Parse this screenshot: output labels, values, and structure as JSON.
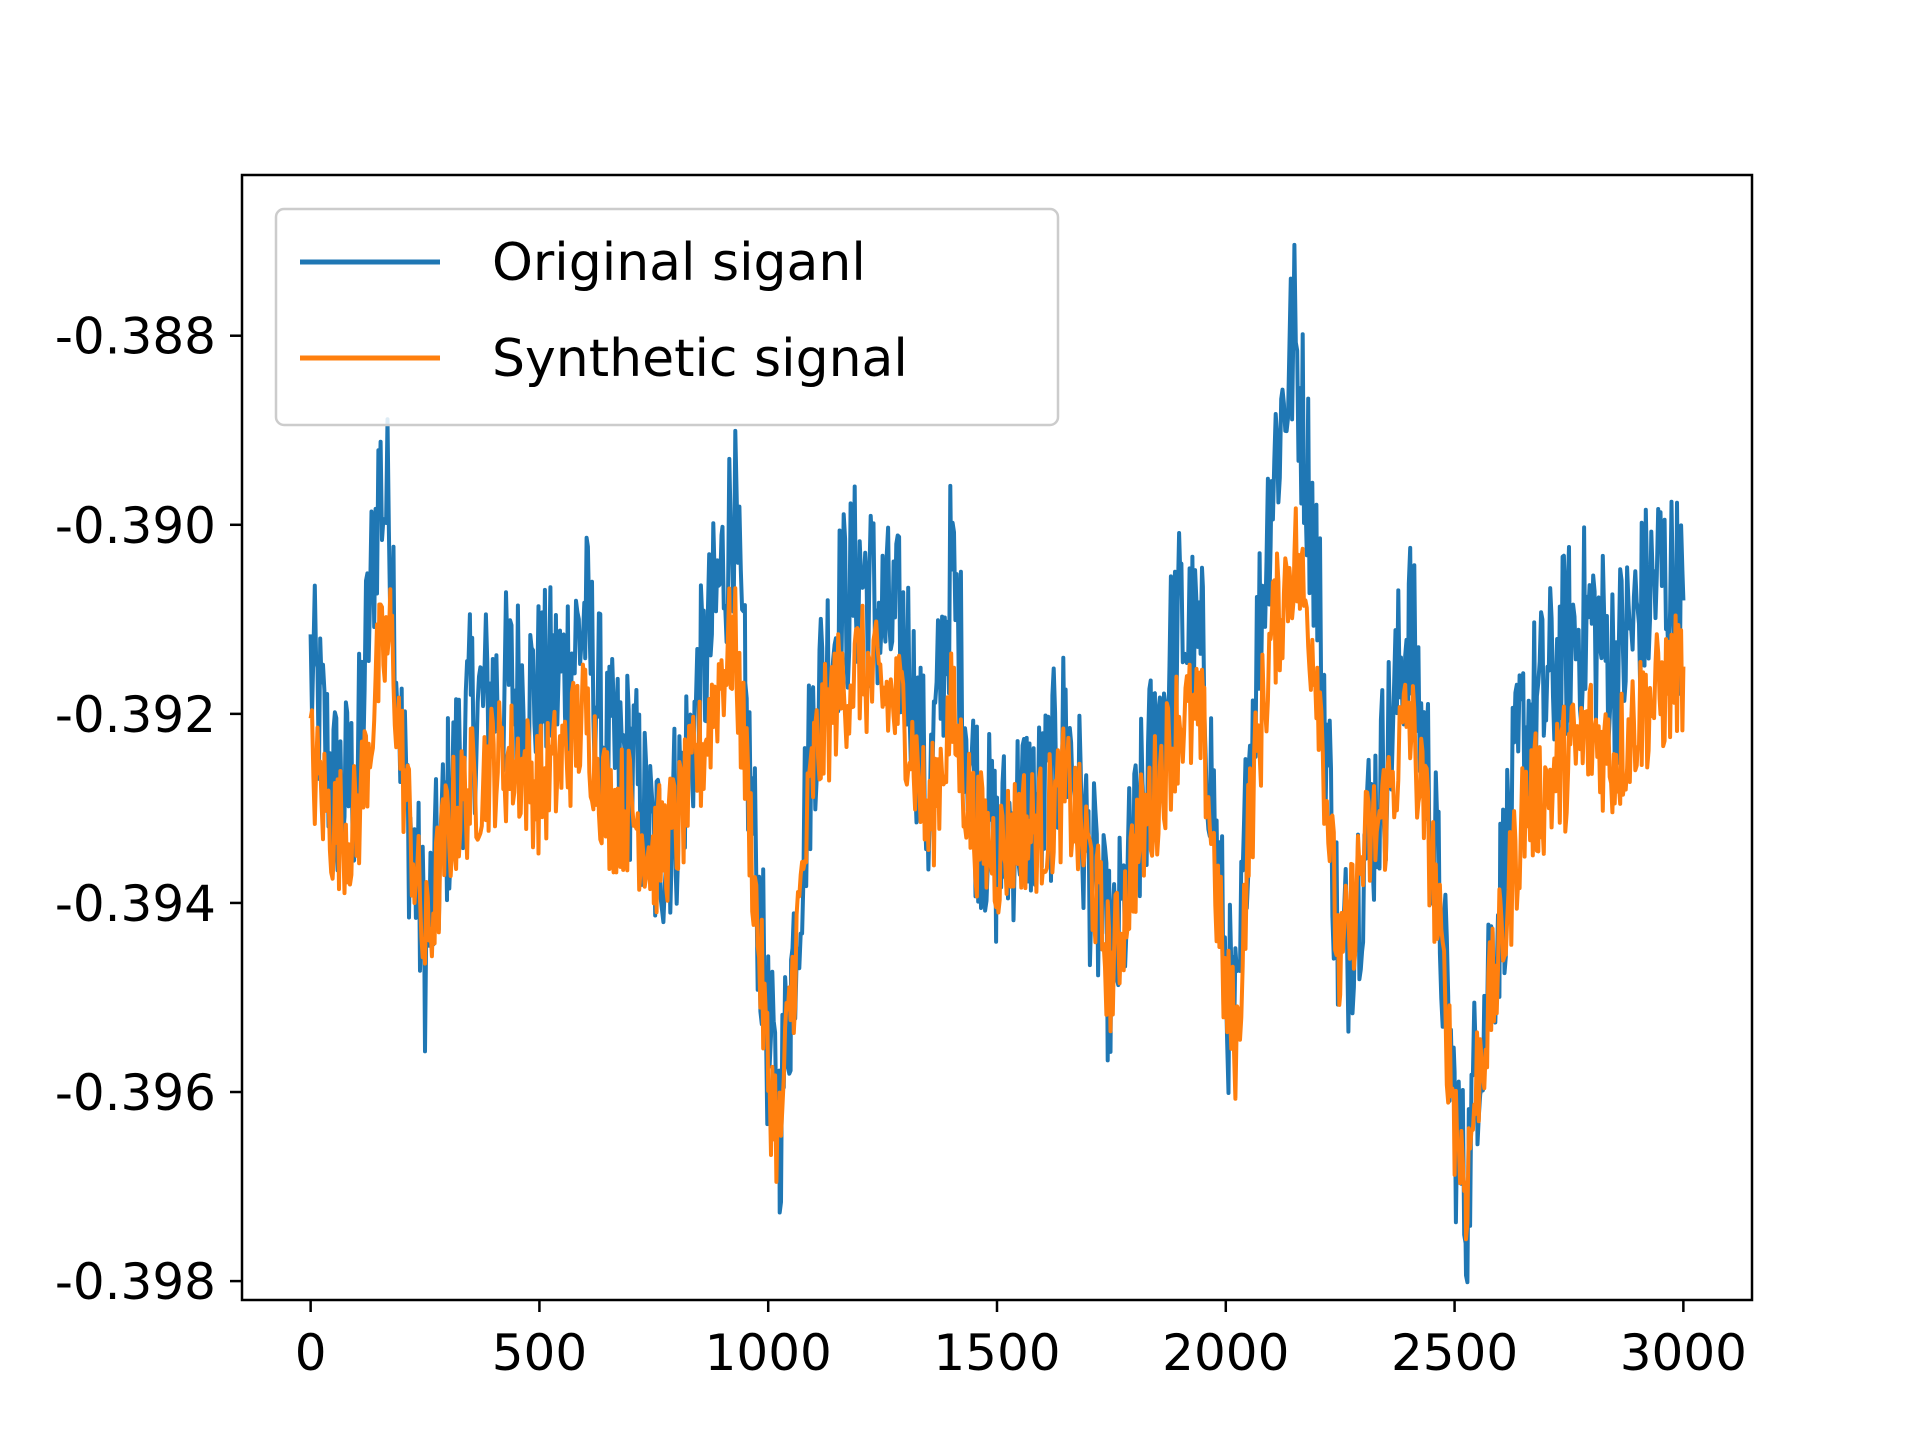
{
  "chart_data": {
    "type": "line",
    "title": "",
    "xlabel": "",
    "ylabel": "",
    "xlim": [
      -150,
      3150
    ],
    "ylim": [
      -0.3982,
      -0.3863
    ],
    "x_ticks": [
      0,
      500,
      1000,
      1500,
      2000,
      2500,
      3000
    ],
    "x_tick_labels": [
      "0",
      "500",
      "1000",
      "1500",
      "2000",
      "2500",
      "3000"
    ],
    "y_ticks": [
      -0.398,
      -0.396,
      -0.394,
      -0.392,
      -0.39,
      -0.388
    ],
    "y_tick_labels": [
      "-0.398",
      "-0.396",
      "-0.394",
      "-0.392",
      "-0.390",
      "-0.388"
    ],
    "grid": false,
    "legend_position": "top-left",
    "series": [
      {
        "name": "Original siganl",
        "color": "#1f77b4",
        "x": [
          0,
          50,
          100,
          150,
          175,
          200,
          250,
          300,
          350,
          400,
          450,
          500,
          550,
          600,
          650,
          700,
          750,
          800,
          850,
          900,
          925,
          950,
          1000,
          1025,
          1050,
          1100,
          1150,
          1200,
          1250,
          1300,
          1350,
          1400,
          1450,
          1500,
          1550,
          1600,
          1650,
          1700,
          1750,
          1800,
          1850,
          1900,
          1950,
          2000,
          2025,
          2050,
          2100,
          2150,
          2200,
          2250,
          2300,
          2350,
          2400,
          2450,
          2500,
          2525,
          2550,
          2600,
          2650,
          2700,
          2750,
          2800,
          2850,
          2900,
          2950,
          3000
        ],
        "y": [
          -0.3915,
          -0.3928,
          -0.3928,
          -0.3895,
          -0.39,
          -0.3925,
          -0.3945,
          -0.393,
          -0.392,
          -0.3918,
          -0.3917,
          -0.3918,
          -0.3916,
          -0.391,
          -0.3925,
          -0.3925,
          -0.3935,
          -0.393,
          -0.3918,
          -0.3905,
          -0.3898,
          -0.392,
          -0.3955,
          -0.3963,
          -0.3948,
          -0.392,
          -0.391,
          -0.3905,
          -0.391,
          -0.3912,
          -0.393,
          -0.3905,
          -0.3928,
          -0.3935,
          -0.393,
          -0.393,
          -0.3922,
          -0.3935,
          -0.3948,
          -0.3935,
          -0.3922,
          -0.391,
          -0.3915,
          -0.3948,
          -0.3955,
          -0.3925,
          -0.3895,
          -0.388,
          -0.3905,
          -0.3948,
          -0.3935,
          -0.3925,
          -0.391,
          -0.393,
          -0.3962,
          -0.3972,
          -0.3955,
          -0.394,
          -0.3922,
          -0.3918,
          -0.3912,
          -0.391,
          -0.3915,
          -0.391,
          -0.3905,
          -0.3908
        ]
      },
      {
        "name": "Synthetic signal",
        "color": "#ff7f0e",
        "x": [
          0,
          50,
          100,
          150,
          175,
          200,
          250,
          300,
          350,
          400,
          450,
          500,
          550,
          600,
          650,
          700,
          750,
          800,
          850,
          900,
          925,
          950,
          1000,
          1025,
          1050,
          1100,
          1150,
          1200,
          1250,
          1300,
          1350,
          1400,
          1450,
          1500,
          1550,
          1600,
          1650,
          1700,
          1750,
          1800,
          1850,
          1900,
          1950,
          2000,
          2025,
          2050,
          2100,
          2150,
          2200,
          2250,
          2300,
          2350,
          2400,
          2450,
          2500,
          2525,
          2550,
          2600,
          2650,
          2700,
          2750,
          2800,
          2850,
          2900,
          2950,
          3000
        ],
        "y": [
          -0.3925,
          -0.3932,
          -0.3932,
          -0.3915,
          -0.3912,
          -0.3925,
          -0.3945,
          -0.3932,
          -0.3928,
          -0.3925,
          -0.3925,
          -0.3928,
          -0.3925,
          -0.392,
          -0.393,
          -0.393,
          -0.3935,
          -0.3932,
          -0.3925,
          -0.3915,
          -0.3912,
          -0.3925,
          -0.3958,
          -0.3965,
          -0.395,
          -0.3925,
          -0.3918,
          -0.3915,
          -0.3918,
          -0.392,
          -0.3932,
          -0.392,
          -0.3932,
          -0.3935,
          -0.3932,
          -0.3932,
          -0.3928,
          -0.3935,
          -0.3948,
          -0.3935,
          -0.3928,
          -0.392,
          -0.3922,
          -0.395,
          -0.3955,
          -0.3932,
          -0.3912,
          -0.3903,
          -0.3915,
          -0.3948,
          -0.3935,
          -0.393,
          -0.392,
          -0.3935,
          -0.3962,
          -0.397,
          -0.3958,
          -0.3945,
          -0.393,
          -0.3928,
          -0.3925,
          -0.3922,
          -0.3925,
          -0.392,
          -0.3918,
          -0.3915
        ]
      }
    ]
  }
}
